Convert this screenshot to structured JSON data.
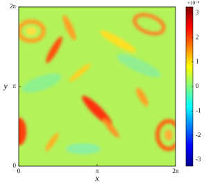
{
  "chart_data": {
    "type": "heatmap",
    "xlabel": "x",
    "ylabel": "y",
    "xlim": [
      0,
      6.283185
    ],
    "ylim": [
      0,
      6.283185
    ],
    "xticks": [
      0,
      {
        "value": 3.141593,
        "label": "π"
      },
      {
        "value": 6.283185,
        "label": "2π"
      }
    ],
    "yticks": [
      0,
      {
        "value": 3.141593,
        "label": "π"
      },
      {
        "value": 6.283185,
        "label": "2π"
      }
    ],
    "colorbar": {
      "lim": [
        -3.25,
        3.25
      ],
      "ticks": [
        -3,
        -2,
        -1,
        0,
        1,
        2,
        3
      ],
      "offset_label": "×10⁻⁴",
      "colormap": [
        "#00008f",
        "#0000ff",
        "#0080ff",
        "#00ffff",
        "#80ff80",
        "#ffff00",
        "#ff8000",
        "#ff0000",
        "#800000"
      ]
    }
  }
}
